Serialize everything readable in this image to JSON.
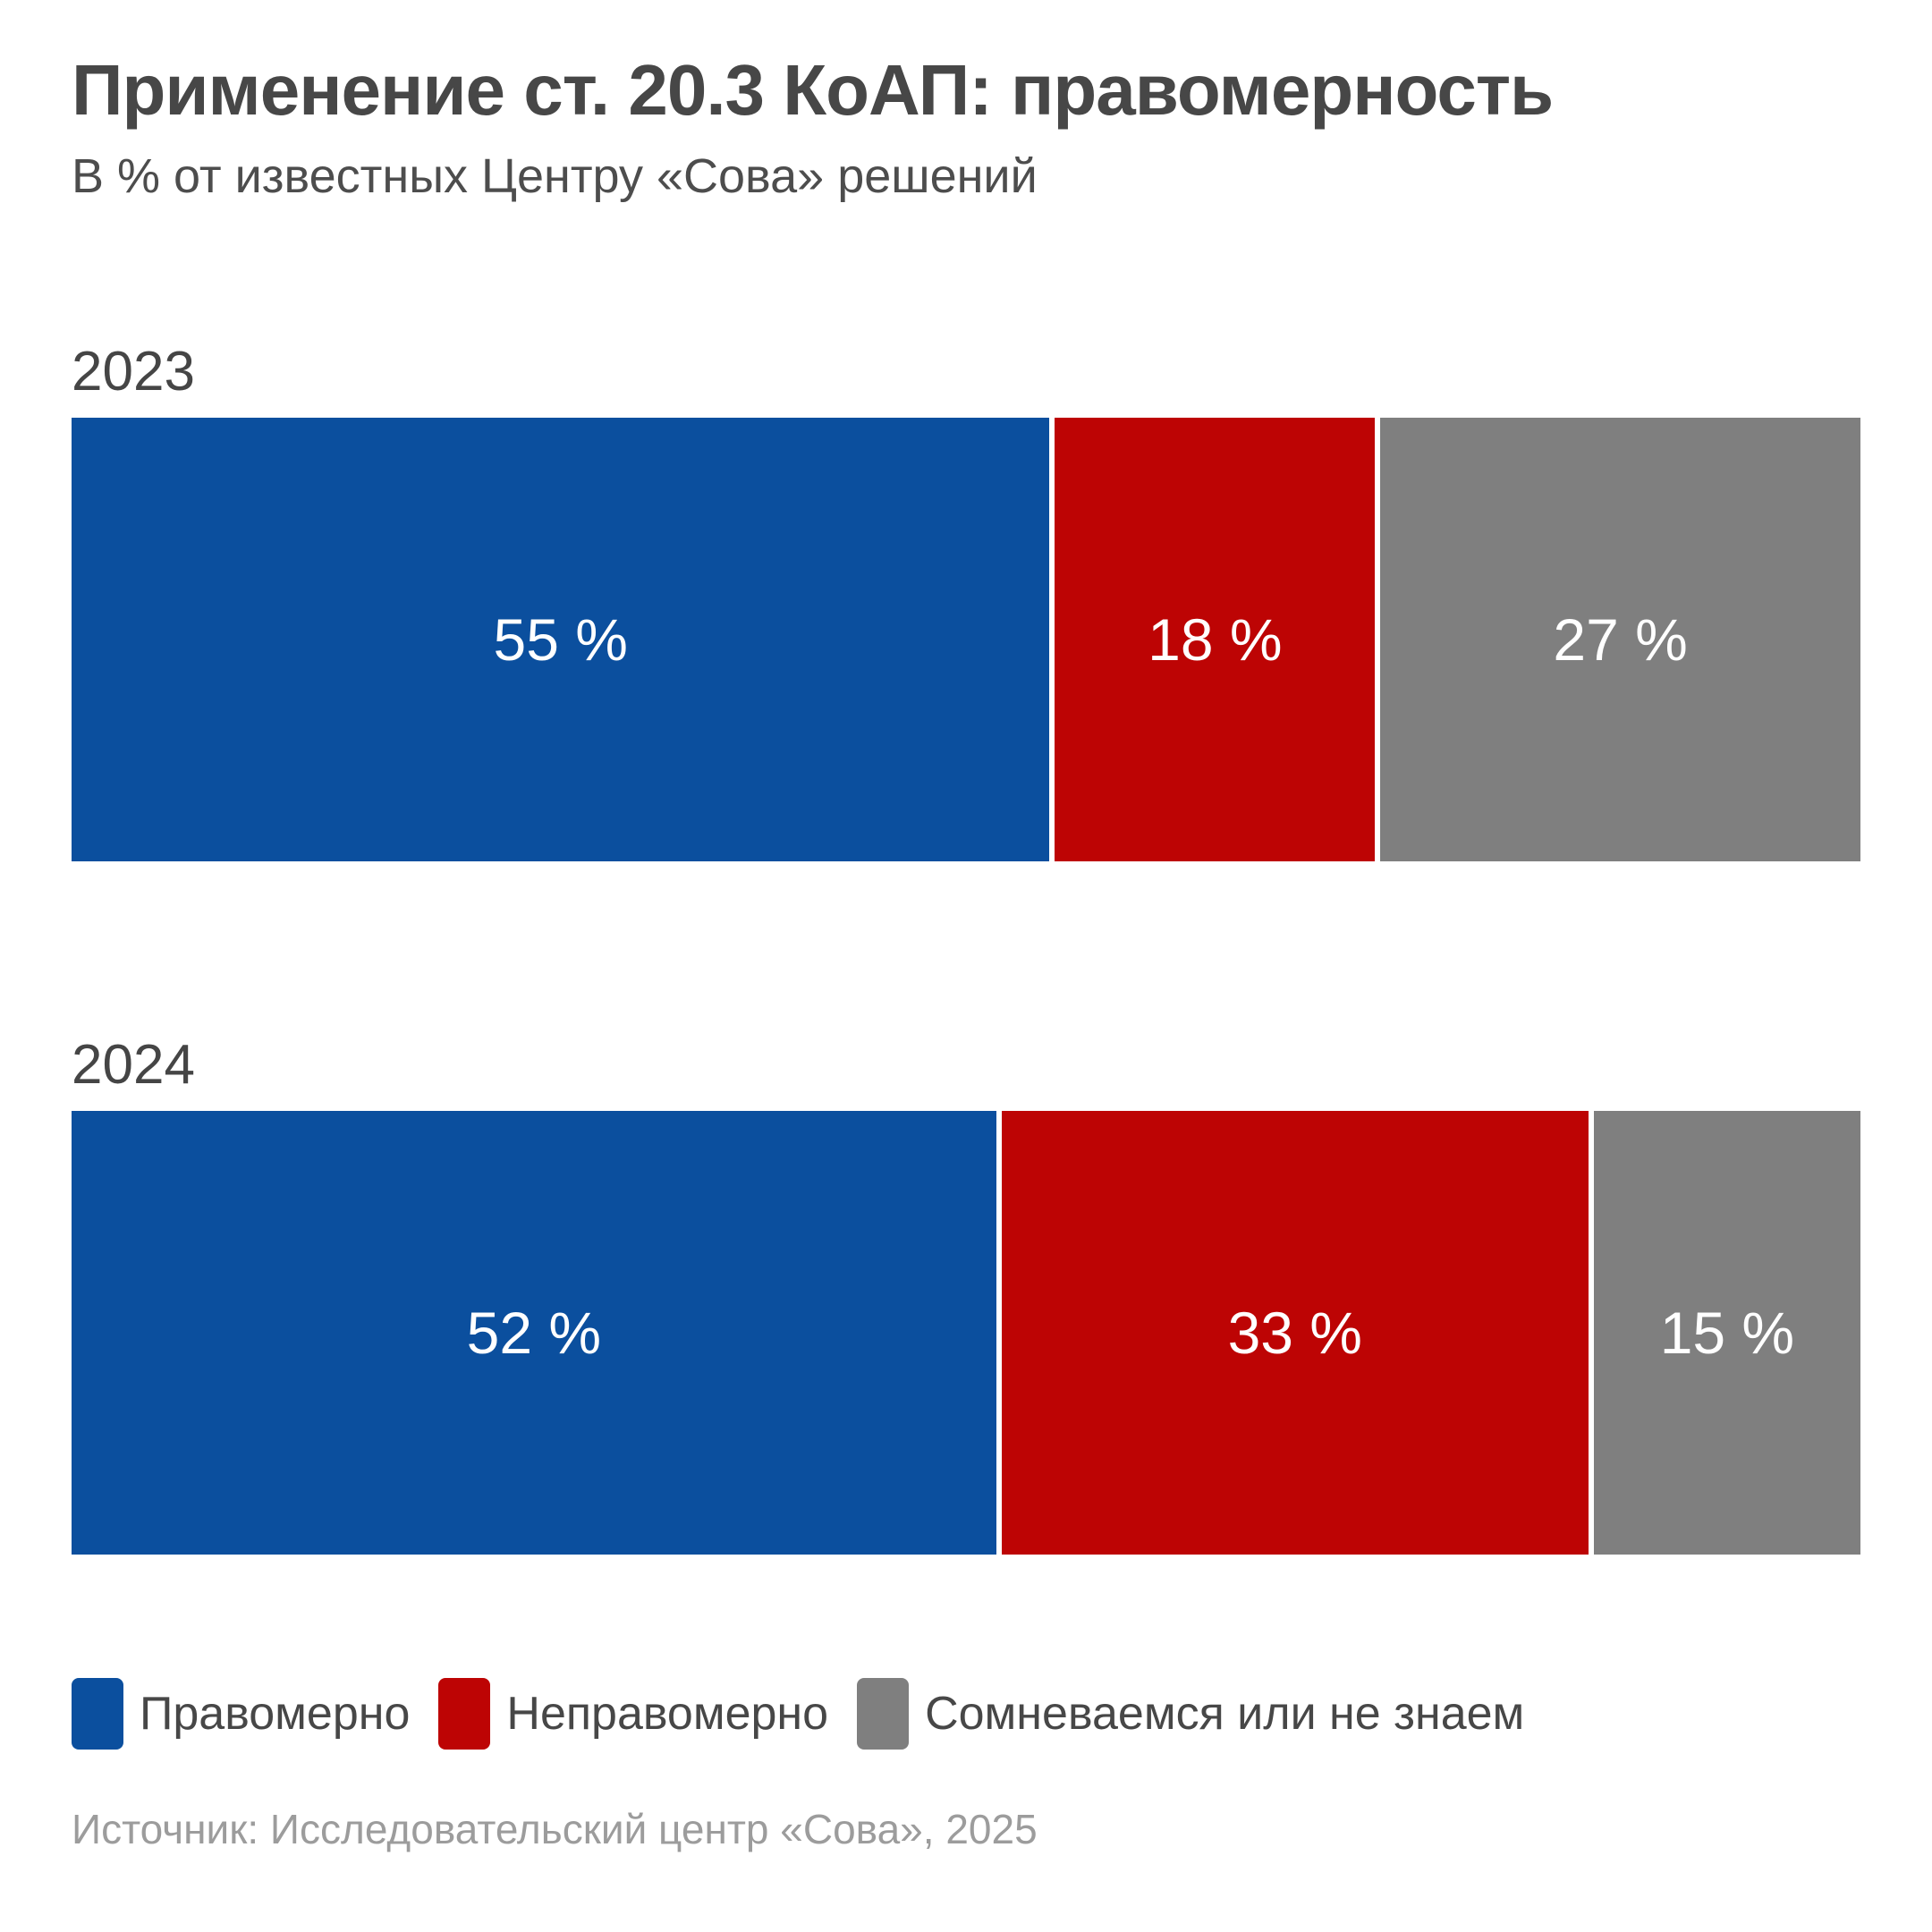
{
  "title": "Применение ст. 20.3 КоАП: правомерность",
  "subtitle": "В % от известных Центру «Сова» решений",
  "source": "Источник: Исследовательский центр «Сова», 2025",
  "colors": {
    "lawful_blue": "#0b4f9e",
    "unlawful_red": "#bd0404",
    "doubt_gray": "#7f7f7f",
    "title_text": "#474747",
    "source_text": "#9c9c9c"
  },
  "legend": [
    {
      "label": "Правомерно",
      "color": "#0b4f9e"
    },
    {
      "label": "Неправомерно",
      "color": "#bd0404"
    },
    {
      "label": "Сомневаемся или не знаем",
      "color": "#7f7f7f"
    }
  ],
  "chart_data": {
    "type": "bar",
    "subtype": "horizontal-stacked-100",
    "title": "Применение ст. 20.3 КоАП: правомерность",
    "subtitle": "В % от известных Центру «Сова» решений",
    "categories": [
      "2023",
      "2024"
    ],
    "series": [
      {
        "name": "Правомерно",
        "color": "#0b4f9e",
        "values": [
          55,
          52
        ]
      },
      {
        "name": "Неправомерно",
        "color": "#bd0404",
        "values": [
          18,
          33
        ]
      },
      {
        "name": "Сомневаемся или не знаем",
        "color": "#7f7f7f",
        "values": [
          27,
          15
        ]
      }
    ],
    "value_labels": [
      [
        "55 %",
        "18 %",
        "27 %"
      ],
      [
        "52 %",
        "33 %",
        "15 %"
      ]
    ],
    "xlim": [
      0,
      100
    ],
    "grid": false,
    "legend_position": "bottom",
    "source": "Источник: Исследовательский центр «Сова», 2025"
  }
}
